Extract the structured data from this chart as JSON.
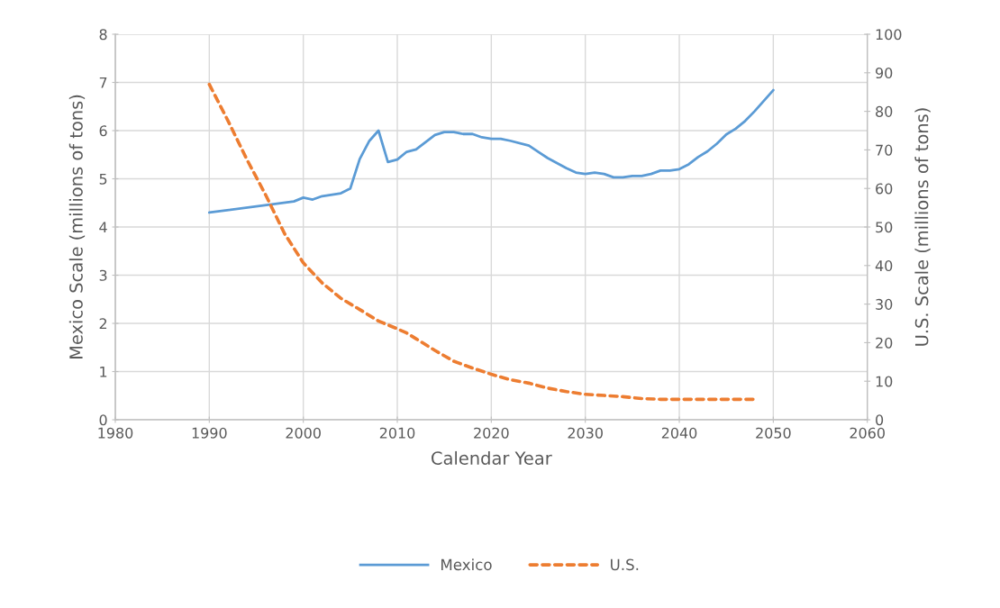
{
  "chart_data": {
    "type": "line",
    "xlabel": "Calendar Year",
    "ylabel": "Mexico Scale (millions of tons)",
    "y2label": "U.S. Scale (millions of tons)",
    "xlim": [
      1980,
      2060
    ],
    "xticks": [
      1980,
      1990,
      2000,
      2010,
      2020,
      2030,
      2040,
      2050,
      2060
    ],
    "ylim": [
      0,
      8
    ],
    "yticks": [
      0,
      1,
      2,
      3,
      4,
      5,
      6,
      7,
      8
    ],
    "y2lim": [
      0,
      100
    ],
    "y2ticks": [
      0,
      10,
      20,
      30,
      40,
      50,
      60,
      70,
      80,
      90,
      100
    ],
    "grid": true,
    "legend": "bottom",
    "series": [
      {
        "name": "Mexico",
        "color": "#5b9bd5",
        "line_style": "solid",
        "x": [
          1990,
          1999,
          2000,
          2001,
          2002,
          2004,
          2005,
          2006,
          2007,
          2008,
          2009,
          2010,
          2011,
          2012,
          2014,
          2015,
          2016,
          2017,
          2018,
          2019,
          2020,
          2021,
          2022,
          2024,
          2025,
          2026,
          2028,
          2029,
          2030,
          2031,
          2032,
          2033,
          2034,
          2035,
          2036,
          2037,
          2038,
          2039,
          2040,
          2041,
          2042,
          2043,
          2044,
          2045,
          2046,
          2047,
          2048,
          2049,
          2050
        ],
        "values": [
          4.3,
          4.53,
          4.61,
          4.57,
          4.64,
          4.7,
          4.8,
          5.41,
          5.78,
          6.0,
          5.35,
          5.4,
          5.56,
          5.61,
          5.91,
          5.97,
          5.97,
          5.93,
          5.93,
          5.86,
          5.83,
          5.83,
          5.79,
          5.69,
          5.56,
          5.43,
          5.22,
          5.13,
          5.1,
          5.13,
          5.1,
          5.03,
          5.03,
          5.06,
          5.06,
          5.1,
          5.17,
          5.17,
          5.2,
          5.3,
          5.45,
          5.57,
          5.73,
          5.92,
          6.04,
          6.2,
          6.4,
          6.62,
          6.84
        ]
      },
      {
        "name": "U.S.",
        "color": "#ed7d31",
        "line_style": "dashed",
        "axis": "y2",
        "x": [
          1990,
          1992,
          1994,
          1996,
          1998,
          2000,
          2002,
          2004,
          2006,
          2008,
          2010,
          2011,
          2012,
          2014,
          2016,
          2018,
          2020,
          2022,
          2024,
          2026,
          2028,
          2030,
          2032,
          2034,
          2036,
          2038,
          2040,
          2042,
          2044,
          2046,
          2048
        ],
        "values": [
          87,
          77.5,
          67.5,
          58.3,
          48.3,
          40.7,
          35.5,
          31.5,
          28.6,
          25.6,
          23.6,
          22.5,
          21,
          18,
          15.2,
          13.4,
          11.8,
          10.4,
          9.5,
          8.2,
          7.3,
          6.6,
          6.3,
          6,
          5.5,
          5.3,
          5.3,
          5.3,
          5.3,
          5.3,
          5.3
        ]
      }
    ]
  }
}
